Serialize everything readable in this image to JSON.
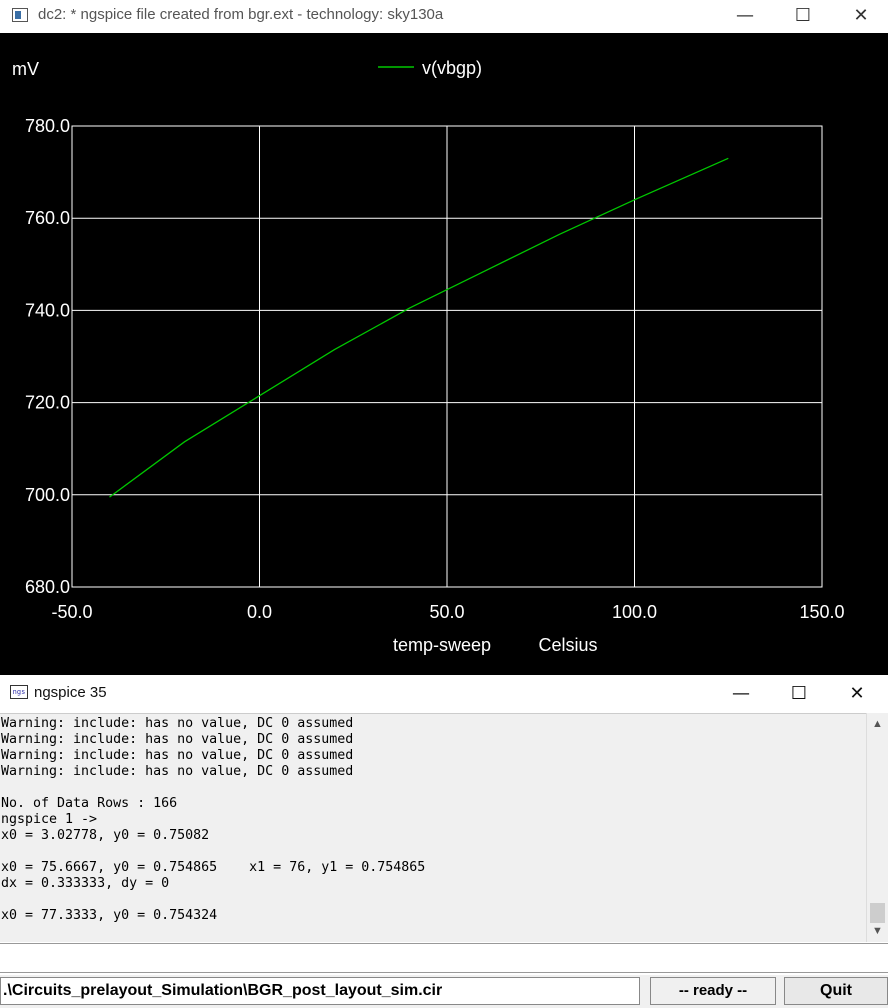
{
  "plot_window": {
    "title": "dc2: * ngspice file created from bgr.ext - technology: sky130a",
    "controls": {
      "minimize": "—",
      "maximize": "☐",
      "close": "✕"
    }
  },
  "chart_data": {
    "type": "line",
    "ylabel": "mV",
    "xlabel": "temp-sweep",
    "xunit": "Celsius",
    "xlim": [
      -50,
      150
    ],
    "ylim": [
      680,
      780
    ],
    "xticks": [
      "-50.0",
      "0.0",
      "50.0",
      "100.0",
      "150.0"
    ],
    "yticks": [
      "780.0",
      "760.0",
      "740.0",
      "720.0",
      "700.0",
      "680.0"
    ],
    "grid": true,
    "legend_position": "top-center",
    "background": "#000000",
    "grid_color": "#ffffff",
    "series": [
      {
        "name": "v(vbgp)",
        "color": "#00c800",
        "points": [
          [
            -40,
            699.5
          ],
          [
            -20,
            711.5
          ],
          [
            0,
            721.5
          ],
          [
            20,
            731.5
          ],
          [
            40,
            740.5
          ],
          [
            60,
            748.5
          ],
          [
            80,
            756.5
          ],
          [
            100,
            764.0
          ],
          [
            125,
            773.0
          ]
        ]
      }
    ]
  },
  "console_window": {
    "title": "ngspice 35",
    "icon_label": "ngs",
    "controls": {
      "minimize": "—",
      "maximize": "☐",
      "close": "✕"
    },
    "lines": [
      "Warning: include: has no value, DC 0 assumed",
      "Warning: include: has no value, DC 0 assumed",
      "Warning: include: has no value, DC 0 assumed",
      "Warning: include: has no value, DC 0 assumed",
      "",
      "No. of Data Rows : 166",
      "ngspice 1 ->",
      "x0 = 3.02778, y0 = 0.75082",
      "",
      "x0 = 75.6667, y0 = 0.754865    x1 = 76, y1 = 0.754865",
      "dx = 0.333333, dy = 0",
      "",
      "x0 = 77.3333, y0 = 0.754324"
    ],
    "input_value": "",
    "status_file": ".\\Circuits_prelayout_Simulation\\BGR_post_layout_sim.cir",
    "status": "-- ready --",
    "quit_label": "Quit"
  }
}
